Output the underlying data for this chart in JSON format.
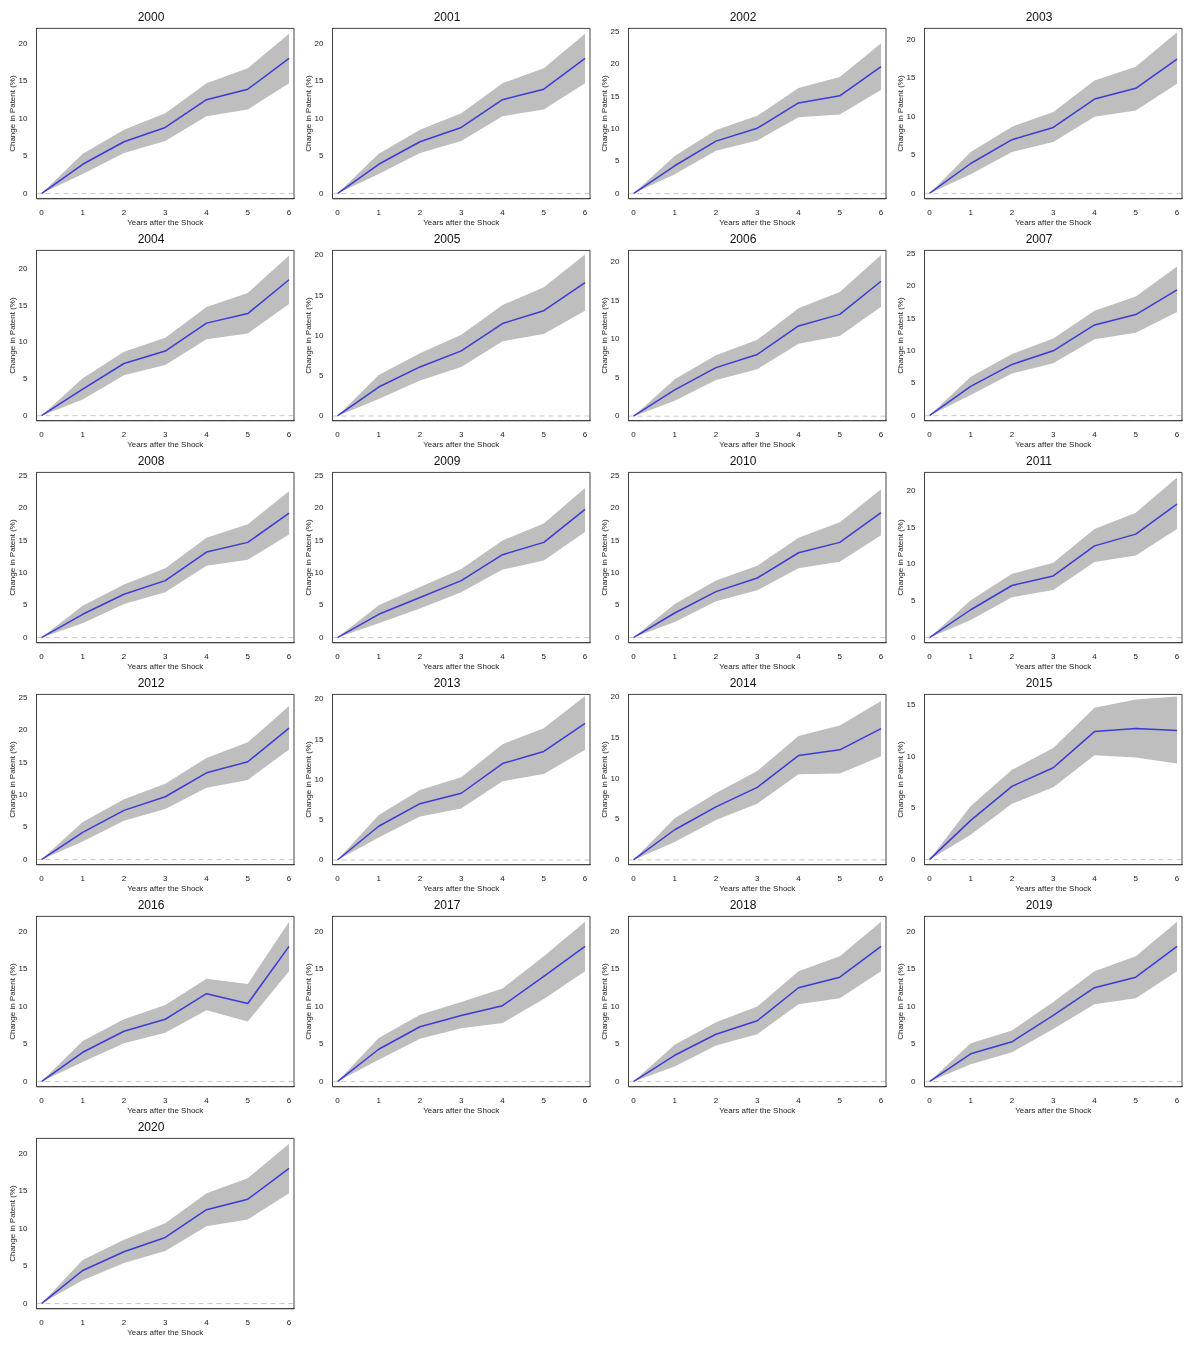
{
  "chart_data": [
    {
      "type": "line",
      "title": "2000",
      "xlabel": "Years after the Shock",
      "ylabel": "Change in Patent (%)",
      "x": [
        0,
        1,
        2,
        3,
        4,
        5,
        6
      ],
      "xlim": [
        -0.12,
        6.12
      ],
      "xticks": [
        0,
        1,
        2,
        3,
        4,
        5,
        6
      ],
      "ylim": [
        -0.7,
        22
      ],
      "yticks": [
        0,
        5,
        10,
        15,
        20
      ],
      "grid": false,
      "marker": "none",
      "ref_lines": [
        {
          "axis": "y",
          "value": 0,
          "color": "#c8c8c8",
          "line_style": "dashed"
        }
      ],
      "series": [
        {
          "color": "#3b3bd6",
          "values": [
            0,
            3.9,
            6.9,
            8.8,
            12.5,
            13.9,
            18
          ],
          "lower": [
            0,
            2.6,
            5.4,
            7,
            10.3,
            11.2,
            14.7
          ],
          "upper": [
            0,
            5.3,
            8.5,
            10.7,
            14.7,
            16.7,
            21.3
          ]
        }
      ]
    },
    {
      "type": "line",
      "title": "2001",
      "xlabel": "Years after the Shock",
      "ylabel": "Change in Patent (%)",
      "x": [
        0,
        1,
        2,
        3,
        4,
        5,
        6
      ],
      "xlim": [
        -0.12,
        6.12
      ],
      "xticks": [
        0,
        1,
        2,
        3,
        4,
        5,
        6
      ],
      "ylim": [
        -0.7,
        22
      ],
      "yticks": [
        0,
        5,
        10,
        15,
        20
      ],
      "grid": false,
      "marker": "none",
      "ref_lines": [
        {
          "axis": "y",
          "value": 0,
          "color": "#c8c8c8",
          "line_style": "dashed"
        }
      ],
      "series": [
        {
          "color": "#3b3bd6",
          "values": [
            0,
            3.9,
            6.9,
            8.8,
            12.5,
            13.9,
            18
          ],
          "lower": [
            0,
            2.6,
            5.4,
            7,
            10.3,
            11.2,
            14.7
          ],
          "upper": [
            0,
            5.3,
            8.5,
            10.7,
            14.7,
            16.7,
            21.3
          ]
        }
      ]
    },
    {
      "type": "line",
      "title": "2002",
      "xlabel": "Years after the Shock",
      "ylabel": "Change in Patent (%)",
      "x": [
        0,
        1,
        2,
        3,
        4,
        5,
        6
      ],
      "xlim": [
        -0.12,
        6.12
      ],
      "xticks": [
        0,
        1,
        2,
        3,
        4,
        5,
        6
      ],
      "ylim": [
        -0.8,
        25.5
      ],
      "yticks": [
        0,
        5,
        10,
        15,
        20,
        25
      ],
      "grid": false,
      "marker": "none",
      "ref_lines": [
        {
          "axis": "y",
          "value": 0,
          "color": "#c8c8c8",
          "line_style": "dashed"
        }
      ],
      "series": [
        {
          "color": "#3b3bd6",
          "values": [
            0,
            4.3,
            8.1,
            10.1,
            14,
            15.1,
            19.6
          ],
          "lower": [
            0,
            3,
            6.6,
            8.2,
            11.8,
            12.2,
            16
          ],
          "upper": [
            0,
            5.8,
            9.8,
            12,
            16.3,
            18,
            23.2
          ]
        }
      ]
    },
    {
      "type": "line",
      "title": "2003",
      "xlabel": "Years after the Shock",
      "ylabel": "Change in Patent (%)",
      "x": [
        0,
        1,
        2,
        3,
        4,
        5,
        6
      ],
      "xlim": [
        -0.12,
        6.12
      ],
      "xticks": [
        0,
        1,
        2,
        3,
        4,
        5,
        6
      ],
      "ylim": [
        -0.7,
        21.5
      ],
      "yticks": [
        0,
        5,
        10,
        15,
        20
      ],
      "grid": false,
      "marker": "none",
      "ref_lines": [
        {
          "axis": "y",
          "value": 0,
          "color": "#c8c8c8",
          "line_style": "dashed"
        }
      ],
      "series": [
        {
          "color": "#3b3bd6",
          "values": [
            0,
            3.9,
            7,
            8.6,
            12.3,
            13.7,
            17.5
          ],
          "lower": [
            0,
            2.5,
            5.4,
            6.7,
            10,
            10.8,
            14.3
          ],
          "upper": [
            0,
            5.4,
            8.7,
            10.6,
            14.7,
            16.5,
            21
          ]
        }
      ]
    },
    {
      "type": "line",
      "title": "2004",
      "xlabel": "Years after the Shock",
      "ylabel": "Change in Patent (%)",
      "x": [
        0,
        1,
        2,
        3,
        4,
        5,
        6
      ],
      "xlim": [
        -0.12,
        6.12
      ],
      "xticks": [
        0,
        1,
        2,
        3,
        4,
        5,
        6
      ],
      "ylim": [
        -0.7,
        22.5
      ],
      "yticks": [
        0,
        5,
        10,
        15,
        20
      ],
      "grid": false,
      "marker": "none",
      "ref_lines": [
        {
          "axis": "y",
          "value": 0,
          "color": "#c8c8c8",
          "line_style": "dashed"
        }
      ],
      "series": [
        {
          "color": "#3b3bd6",
          "values": [
            0,
            3.6,
            7.1,
            8.8,
            12.6,
            13.9,
            18.5
          ],
          "lower": [
            0,
            2.2,
            5.5,
            6.9,
            10.4,
            11.2,
            15.2
          ],
          "upper": [
            0,
            5.1,
            8.7,
            10.6,
            14.8,
            16.7,
            21.8
          ]
        }
      ]
    },
    {
      "type": "line",
      "title": "2005",
      "xlabel": "Years after the Shock",
      "ylabel": "Change in Patent (%)",
      "x": [
        0,
        1,
        2,
        3,
        4,
        5,
        6
      ],
      "xlim": [
        -0.12,
        6.12
      ],
      "xticks": [
        0,
        1,
        2,
        3,
        4,
        5,
        6
      ],
      "ylim": [
        -0.6,
        20.6
      ],
      "yticks": [
        0,
        5,
        10,
        15,
        20
      ],
      "grid": false,
      "marker": "none",
      "ref_lines": [
        {
          "axis": "y",
          "value": 0,
          "color": "#c8c8c8",
          "line_style": "dashed"
        }
      ],
      "series": [
        {
          "color": "#3b3bd6",
          "values": [
            0,
            3.6,
            6.1,
            8.1,
            11.5,
            13.1,
            16.6
          ],
          "lower": [
            0,
            2.1,
            4.4,
            6.1,
            9.3,
            10.2,
            13.1
          ],
          "upper": [
            0,
            5.1,
            7.8,
            10.1,
            13.8,
            16,
            20.1
          ]
        }
      ]
    },
    {
      "type": "line",
      "title": "2006",
      "xlabel": "Years after the Shock",
      "ylabel": "Change in Patent (%)",
      "x": [
        0,
        1,
        2,
        3,
        4,
        5,
        6
      ],
      "xlim": [
        -0.12,
        6.12
      ],
      "xticks": [
        0,
        1,
        2,
        3,
        4,
        5,
        6
      ],
      "ylim": [
        -0.6,
        21.5
      ],
      "yticks": [
        0,
        5,
        10,
        15,
        20
      ],
      "grid": false,
      "marker": "none",
      "ref_lines": [
        {
          "axis": "y",
          "value": 0,
          "color": "#c8c8c8",
          "line_style": "dashed"
        }
      ],
      "series": [
        {
          "color": "#3b3bd6",
          "values": [
            0,
            3.4,
            6.3,
            8,
            11.7,
            13.2,
            17.5
          ],
          "lower": [
            0,
            2,
            4.7,
            6.1,
            9.4,
            10.4,
            14.2
          ],
          "upper": [
            0,
            4.8,
            7.9,
            9.9,
            14,
            16.1,
            20.9
          ]
        }
      ]
    },
    {
      "type": "line",
      "title": "2007",
      "xlabel": "Years after the Shock",
      "ylabel": "Change in Patent (%)",
      "x": [
        0,
        1,
        2,
        3,
        4,
        5,
        6
      ],
      "xlim": [
        -0.12,
        6.12
      ],
      "xticks": [
        0,
        1,
        2,
        3,
        4,
        5,
        6
      ],
      "ylim": [
        -0.8,
        25.5
      ],
      "yticks": [
        0,
        5,
        10,
        15,
        20,
        25
      ],
      "grid": false,
      "marker": "none",
      "ref_lines": [
        {
          "axis": "y",
          "value": 0,
          "color": "#c8c8c8",
          "line_style": "dashed"
        }
      ],
      "series": [
        {
          "color": "#3b3bd6",
          "values": [
            0,
            4.5,
            7.9,
            10,
            14,
            15.6,
            19.4
          ],
          "lower": [
            0,
            3.2,
            6.5,
            8.1,
            11.8,
            12.8,
            16
          ],
          "upper": [
            0,
            6,
            9.5,
            11.9,
            16.2,
            18.4,
            23
          ]
        }
      ]
    },
    {
      "type": "line",
      "title": "2008",
      "xlabel": "Years after the Shock",
      "ylabel": "Change in Patent (%)",
      "x": [
        0,
        1,
        2,
        3,
        4,
        5,
        6
      ],
      "xlim": [
        -0.12,
        6.12
      ],
      "xticks": [
        0,
        1,
        2,
        3,
        4,
        5,
        6
      ],
      "ylim": [
        -0.8,
        25.5
      ],
      "yticks": [
        0,
        5,
        10,
        15,
        20,
        25
      ],
      "grid": false,
      "marker": "none",
      "ref_lines": [
        {
          "axis": "y",
          "value": 0,
          "color": "#c8c8c8",
          "line_style": "dashed"
        }
      ],
      "series": [
        {
          "color": "#3b3bd6",
          "values": [
            0,
            3.6,
            6.7,
            8.8,
            13.2,
            14.7,
            19.2
          ],
          "lower": [
            0,
            2.2,
            5.2,
            7,
            11.1,
            12,
            15.9
          ],
          "upper": [
            0,
            4.9,
            8.2,
            10.7,
            15.4,
            17.5,
            22.6
          ]
        }
      ]
    },
    {
      "type": "line",
      "title": "2009",
      "xlabel": "Years after the Shock",
      "ylabel": "Change in Patent (%)",
      "x": [
        0,
        1,
        2,
        3,
        4,
        5,
        6
      ],
      "xlim": [
        -0.12,
        6.12
      ],
      "xticks": [
        0,
        1,
        2,
        3,
        4,
        5,
        6
      ],
      "ylim": [
        -0.8,
        25.5
      ],
      "yticks": [
        0,
        5,
        10,
        15,
        20,
        25
      ],
      "grid": false,
      "marker": "none",
      "ref_lines": [
        {
          "axis": "y",
          "value": 0,
          "color": "#c8c8c8",
          "line_style": "dashed"
        }
      ],
      "series": [
        {
          "color": "#3b3bd6",
          "values": [
            0,
            3.6,
            6.2,
            8.8,
            12.8,
            14.7,
            19.8
          ],
          "lower": [
            0,
            2.2,
            4.5,
            7,
            10.5,
            11.9,
            16.3
          ],
          "upper": [
            0,
            5,
            7.8,
            10.6,
            15,
            17.6,
            23.1
          ]
        }
      ]
    },
    {
      "type": "line",
      "title": "2010",
      "xlabel": "Years after the Shock",
      "ylabel": "Change in Patent (%)",
      "x": [
        0,
        1,
        2,
        3,
        4,
        5,
        6
      ],
      "xlim": [
        -0.12,
        6.12
      ],
      "xticks": [
        0,
        1,
        2,
        3,
        4,
        5,
        6
      ],
      "ylim": [
        -0.8,
        25.5
      ],
      "yticks": [
        0,
        5,
        10,
        15,
        20,
        25
      ],
      "grid": false,
      "marker": "none",
      "ref_lines": [
        {
          "axis": "y",
          "value": 0,
          "color": "#c8c8c8",
          "line_style": "dashed"
        }
      ],
      "series": [
        {
          "color": "#3b3bd6",
          "values": [
            0,
            3.8,
            7.1,
            9.2,
            13.1,
            14.7,
            19.3
          ],
          "lower": [
            0,
            2.4,
            5.6,
            7.3,
            10.7,
            11.7,
            15.8
          ],
          "upper": [
            0,
            5.2,
            8.8,
            11.1,
            15.4,
            17.8,
            22.9
          ]
        }
      ]
    },
    {
      "type": "line",
      "title": "2011",
      "xlabel": "Years after the Shock",
      "ylabel": "Change in Patent (%)",
      "x": [
        0,
        1,
        2,
        3,
        4,
        5,
        6
      ],
      "xlim": [
        -0.12,
        6.12
      ],
      "xticks": [
        0,
        1,
        2,
        3,
        4,
        5,
        6
      ],
      "ylim": [
        -0.7,
        22.5
      ],
      "yticks": [
        0,
        5,
        10,
        15,
        20
      ],
      "grid": false,
      "marker": "none",
      "ref_lines": [
        {
          "axis": "y",
          "value": 0,
          "color": "#c8c8c8",
          "line_style": "dashed"
        }
      ],
      "series": [
        {
          "color": "#3b3bd6",
          "values": [
            0,
            3.8,
            7.1,
            8.4,
            12.5,
            14.1,
            18.2
          ],
          "lower": [
            0,
            2.4,
            5.5,
            6.5,
            10.3,
            11.2,
            14.8
          ],
          "upper": [
            0,
            5.1,
            8.7,
            10.2,
            14.8,
            17,
            21.8
          ]
        }
      ]
    },
    {
      "type": "line",
      "title": "2012",
      "xlabel": "Years after the Shock",
      "ylabel": "Change in Patent (%)",
      "x": [
        0,
        1,
        2,
        3,
        4,
        5,
        6
      ],
      "xlim": [
        -0.12,
        6.12
      ],
      "xticks": [
        0,
        1,
        2,
        3,
        4,
        5,
        6
      ],
      "ylim": [
        -0.8,
        25.5
      ],
      "yticks": [
        0,
        5,
        10,
        15,
        20,
        25
      ],
      "grid": false,
      "marker": "none",
      "ref_lines": [
        {
          "axis": "y",
          "value": 0,
          "color": "#c8c8c8",
          "line_style": "dashed"
        }
      ],
      "series": [
        {
          "color": "#3b3bd6",
          "values": [
            0,
            4.2,
            7.6,
            9.7,
            13.4,
            15.1,
            20.3
          ],
          "lower": [
            0,
            2.8,
            6,
            7.8,
            11.1,
            12.3,
            17
          ],
          "upper": [
            0,
            5.8,
            9.3,
            11.7,
            15.7,
            18.1,
            23.7
          ]
        }
      ]
    },
    {
      "type": "line",
      "title": "2013",
      "xlabel": "Years after the Shock",
      "ylabel": "Change in Patent (%)",
      "x": [
        0,
        1,
        2,
        3,
        4,
        5,
        6
      ],
      "xlim": [
        -0.12,
        6.12
      ],
      "xticks": [
        0,
        1,
        2,
        3,
        4,
        5,
        6
      ],
      "ylim": [
        -0.6,
        20.6
      ],
      "yticks": [
        0,
        5,
        10,
        15,
        20
      ],
      "grid": false,
      "marker": "none",
      "ref_lines": [
        {
          "axis": "y",
          "value": 0,
          "color": "#c8c8c8",
          "line_style": "dashed"
        }
      ],
      "series": [
        {
          "color": "#3b3bd6",
          "values": [
            0,
            4.2,
            7,
            8.3,
            12,
            13.5,
            17
          ],
          "lower": [
            0,
            2.8,
            5.4,
            6.4,
            9.8,
            10.7,
            13.7
          ],
          "upper": [
            0,
            5.6,
            8.7,
            10.3,
            14.4,
            16.4,
            20.4
          ]
        }
      ]
    },
    {
      "type": "line",
      "title": "2014",
      "xlabel": "Years after the Shock",
      "ylabel": "Change in Patent (%)",
      "x": [
        0,
        1,
        2,
        3,
        4,
        5,
        6
      ],
      "xlim": [
        -0.12,
        6.12
      ],
      "xticks": [
        0,
        1,
        2,
        3,
        4,
        5,
        6
      ],
      "ylim": [
        -0.6,
        20.3
      ],
      "yticks": [
        0,
        5,
        10,
        15,
        20
      ],
      "grid": false,
      "marker": "none",
      "ref_lines": [
        {
          "axis": "y",
          "value": 0,
          "color": "#c8c8c8",
          "line_style": "dashed"
        }
      ],
      "series": [
        {
          "color": "#3b3bd6",
          "values": [
            0,
            3.7,
            6.5,
            8.9,
            12.8,
            13.5,
            16.1
          ],
          "lower": [
            0,
            2.2,
            4.9,
            6.9,
            10.5,
            10.6,
            12.7
          ],
          "upper": [
            0,
            5.1,
            8.2,
            10.9,
            15.2,
            16.5,
            19.5
          ]
        }
      ]
    },
    {
      "type": "line",
      "title": "2015",
      "xlabel": "Years after the Shock",
      "ylabel": "Change in Patent (%)",
      "x": [
        0,
        1,
        2,
        3,
        4,
        5,
        6
      ],
      "xlim": [
        -0.12,
        6.12
      ],
      "xticks": [
        0,
        1,
        2,
        3,
        4,
        5,
        6
      ],
      "ylim": [
        -0.5,
        16
      ],
      "yticks": [
        0,
        5,
        10,
        15
      ],
      "grid": false,
      "marker": "none",
      "ref_lines": [
        {
          "axis": "y",
          "value": 0,
          "color": "#c8c8c8",
          "line_style": "dashed"
        }
      ],
      "series": [
        {
          "color": "#3b3bd6",
          "values": [
            0,
            3.8,
            7.1,
            8.9,
            12.4,
            12.7,
            12.5
          ],
          "lower": [
            0,
            2.4,
            5.4,
            7,
            10.1,
            9.9,
            9.3
          ],
          "upper": [
            0,
            5.2,
            8.7,
            10.8,
            14.7,
            15.5,
            15.8
          ]
        }
      ]
    },
    {
      "type": "line",
      "title": "2016",
      "xlabel": "Years after the Shock",
      "ylabel": "Change in Patent (%)",
      "x": [
        0,
        1,
        2,
        3,
        4,
        5,
        6
      ],
      "xlim": [
        -0.12,
        6.12
      ],
      "xticks": [
        0,
        1,
        2,
        3,
        4,
        5,
        6
      ],
      "ylim": [
        -0.7,
        22
      ],
      "yticks": [
        0,
        5,
        10,
        15,
        20
      ],
      "grid": false,
      "marker": "none",
      "ref_lines": [
        {
          "axis": "y",
          "value": 0,
          "color": "#c8c8c8",
          "line_style": "dashed"
        }
      ],
      "series": [
        {
          "color": "#3b3bd6",
          "values": [
            0,
            3.9,
            6.7,
            8.3,
            11.7,
            10.4,
            18
          ],
          "lower": [
            0,
            2.6,
            5.1,
            6.5,
            9.5,
            8,
            14.7
          ],
          "upper": [
            0,
            5.4,
            8.3,
            10.2,
            13.7,
            13,
            21.3
          ]
        }
      ]
    },
    {
      "type": "line",
      "title": "2017",
      "xlabel": "Years after the Shock",
      "ylabel": "Change in Patent (%)",
      "x": [
        0,
        1,
        2,
        3,
        4,
        5,
        6
      ],
      "xlim": [
        -0.12,
        6.12
      ],
      "xticks": [
        0,
        1,
        2,
        3,
        4,
        5,
        6
      ],
      "ylim": [
        -0.7,
        22
      ],
      "yticks": [
        0,
        5,
        10,
        15,
        20
      ],
      "grid": false,
      "marker": "none",
      "ref_lines": [
        {
          "axis": "y",
          "value": 0,
          "color": "#c8c8c8",
          "line_style": "dashed"
        }
      ],
      "series": [
        {
          "color": "#3b3bd6",
          "values": [
            0,
            4.3,
            7.3,
            8.8,
            10.1,
            14,
            18
          ],
          "lower": [
            0,
            2.9,
            5.7,
            7.1,
            7.8,
            11,
            14.7
          ],
          "upper": [
            0,
            5.8,
            8.9,
            10.6,
            12.4,
            16.7,
            21.3
          ]
        }
      ]
    },
    {
      "type": "line",
      "title": "2018",
      "xlabel": "Years after the Shock",
      "ylabel": "Change in Patent (%)",
      "x": [
        0,
        1,
        2,
        3,
        4,
        5,
        6
      ],
      "xlim": [
        -0.12,
        6.12
      ],
      "xticks": [
        0,
        1,
        2,
        3,
        4,
        5,
        6
      ],
      "ylim": [
        -0.7,
        22
      ],
      "yticks": [
        0,
        5,
        10,
        15,
        20
      ],
      "grid": false,
      "marker": "none",
      "ref_lines": [
        {
          "axis": "y",
          "value": 0,
          "color": "#c8c8c8",
          "line_style": "dashed"
        }
      ],
      "series": [
        {
          "color": "#3b3bd6",
          "values": [
            0,
            3.5,
            6.3,
            8.1,
            12.5,
            13.9,
            18
          ],
          "lower": [
            0,
            2,
            4.8,
            6.3,
            10.3,
            11.1,
            14.7
          ],
          "upper": [
            0,
            4.9,
            7.9,
            10,
            14.7,
            16.7,
            21.3
          ]
        }
      ]
    },
    {
      "type": "line",
      "title": "2019",
      "xlabel": "Years after the Shock",
      "ylabel": "Change in Patent (%)",
      "x": [
        0,
        1,
        2,
        3,
        4,
        5,
        6
      ],
      "xlim": [
        -0.12,
        6.12
      ],
      "xticks": [
        0,
        1,
        2,
        3,
        4,
        5,
        6
      ],
      "ylim": [
        -0.7,
        22
      ],
      "yticks": [
        0,
        5,
        10,
        15,
        20
      ],
      "grid": false,
      "marker": "none",
      "ref_lines": [
        {
          "axis": "y",
          "value": 0,
          "color": "#c8c8c8",
          "line_style": "dashed"
        }
      ],
      "series": [
        {
          "color": "#3b3bd6",
          "values": [
            0,
            3.7,
            5.3,
            8.8,
            12.5,
            13.9,
            18
          ],
          "lower": [
            0,
            2.3,
            3.9,
            7,
            10.3,
            11.1,
            14.7
          ],
          "upper": [
            0,
            5.1,
            6.8,
            10.6,
            14.7,
            16.7,
            21.3
          ]
        }
      ]
    },
    {
      "type": "line",
      "title": "2020",
      "xlabel": "Years after the Shock",
      "ylabel": "Change in Patent (%)",
      "x": [
        0,
        1,
        2,
        3,
        4,
        5,
        6
      ],
      "xlim": [
        -0.12,
        6.12
      ],
      "xticks": [
        0,
        1,
        2,
        3,
        4,
        5,
        6
      ],
      "ylim": [
        -0.7,
        22
      ],
      "yticks": [
        0,
        5,
        10,
        15,
        20
      ],
      "grid": false,
      "marker": "none",
      "ref_lines": [
        {
          "axis": "y",
          "value": 0,
          "color": "#c8c8c8",
          "line_style": "dashed"
        }
      ],
      "series": [
        {
          "color": "#3b3bd6",
          "values": [
            0,
            4.4,
            6.9,
            8.8,
            12.5,
            13.9,
            18
          ],
          "lower": [
            0,
            3.1,
            5.4,
            7,
            10.3,
            11.2,
            14.7
          ],
          "upper": [
            0,
            5.8,
            8.5,
            10.7,
            14.7,
            16.7,
            21.3
          ]
        }
      ]
    }
  ]
}
